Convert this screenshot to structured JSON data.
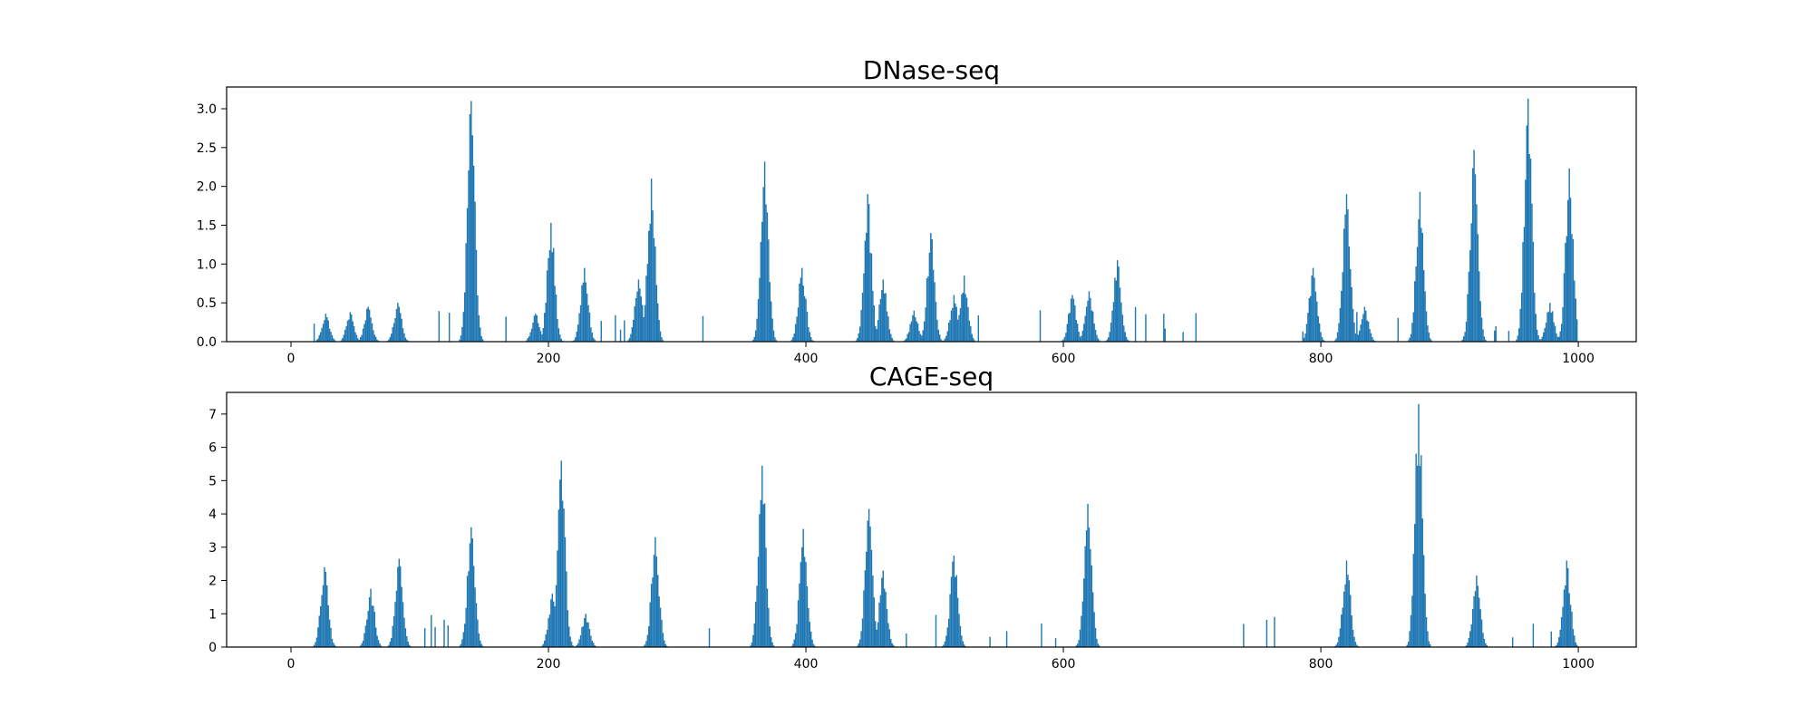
{
  "chart_data": [
    {
      "type": "bar",
      "title": "DNase-seq",
      "xlabel": "",
      "ylabel": "",
      "xlim": [
        -50,
        1045
      ],
      "ylim": [
        0,
        3.28
      ],
      "xticks": [
        0,
        200,
        400,
        600,
        800,
        1000
      ],
      "xtick_labels": [
        "0",
        "200",
        "400",
        "600",
        "800",
        "1000"
      ],
      "yticks": [
        0,
        0.5,
        1.0,
        1.5,
        2.0,
        2.5,
        3.0
      ],
      "ytick_labels": [
        "0.0",
        "0.5",
        "1.0",
        "1.5",
        "2.0",
        "2.5",
        "3.0"
      ],
      "grid": false,
      "color": "#1f77b4",
      "peaks": [
        {
          "x": 27,
          "height": 0.36,
          "width": 3
        },
        {
          "x": 46,
          "height": 0.38,
          "width": 3
        },
        {
          "x": 60,
          "height": 0.45,
          "width": 3
        },
        {
          "x": 83,
          "height": 0.5,
          "width": 3
        },
        {
          "x": 140,
          "height": 3.1,
          "width": 3
        },
        {
          "x": 190,
          "height": 0.36,
          "width": 3
        },
        {
          "x": 202,
          "height": 1.53,
          "width": 3
        },
        {
          "x": 228,
          "height": 0.95,
          "width": 3
        },
        {
          "x": 270,
          "height": 0.8,
          "width": 3
        },
        {
          "x": 280,
          "height": 2.1,
          "width": 3
        },
        {
          "x": 368,
          "height": 2.32,
          "width": 3
        },
        {
          "x": 397,
          "height": 0.95,
          "width": 3
        },
        {
          "x": 448,
          "height": 1.9,
          "width": 3
        },
        {
          "x": 460,
          "height": 0.8,
          "width": 3
        },
        {
          "x": 484,
          "height": 0.4,
          "width": 3
        },
        {
          "x": 497,
          "height": 1.4,
          "width": 3
        },
        {
          "x": 515,
          "height": 0.6,
          "width": 3
        },
        {
          "x": 523,
          "height": 0.85,
          "width": 3
        },
        {
          "x": 607,
          "height": 0.6,
          "width": 3
        },
        {
          "x": 620,
          "height": 0.65,
          "width": 3
        },
        {
          "x": 642,
          "height": 1.05,
          "width": 3
        },
        {
          "x": 794,
          "height": 0.95,
          "width": 3
        },
        {
          "x": 820,
          "height": 1.9,
          "width": 3
        },
        {
          "x": 834,
          "height": 0.45,
          "width": 3
        },
        {
          "x": 877,
          "height": 1.93,
          "width": 3
        },
        {
          "x": 919,
          "height": 2.47,
          "width": 3
        },
        {
          "x": 961,
          "height": 3.13,
          "width": 3
        },
        {
          "x": 978,
          "height": 0.5,
          "width": 3
        },
        {
          "x": 993,
          "height": 2.23,
          "width": 3
        }
      ]
    },
    {
      "type": "bar",
      "title": "CAGE-seq",
      "xlabel": "",
      "ylabel": "",
      "xlim": [
        -50,
        1045
      ],
      "ylim": [
        0,
        7.65
      ],
      "xticks": [
        0,
        200,
        400,
        600,
        800,
        1000
      ],
      "xtick_labels": [
        "0",
        "200",
        "400",
        "600",
        "800",
        "1000"
      ],
      "yticks": [
        0,
        1,
        2,
        3,
        4,
        5,
        6,
        7
      ],
      "ytick_labels": [
        "0",
        "1",
        "2",
        "3",
        "4",
        "5",
        "6",
        "7"
      ],
      "grid": false,
      "color": "#1f77b4",
      "peaks": [
        {
          "x": 26,
          "height": 2.4,
          "width": 3
        },
        {
          "x": 62,
          "height": 1.75,
          "width": 3
        },
        {
          "x": 84,
          "height": 2.65,
          "width": 3
        },
        {
          "x": 140,
          "height": 3.6,
          "width": 3
        },
        {
          "x": 203,
          "height": 1.6,
          "width": 3
        },
        {
          "x": 210,
          "height": 5.6,
          "width": 3
        },
        {
          "x": 229,
          "height": 1.0,
          "width": 3
        },
        {
          "x": 283,
          "height": 3.3,
          "width": 3
        },
        {
          "x": 366,
          "height": 5.45,
          "width": 3
        },
        {
          "x": 398,
          "height": 3.55,
          "width": 3
        },
        {
          "x": 449,
          "height": 4.15,
          "width": 3
        },
        {
          "x": 460,
          "height": 2.3,
          "width": 3
        },
        {
          "x": 515,
          "height": 2.75,
          "width": 3
        },
        {
          "x": 619,
          "height": 4.3,
          "width": 3
        },
        {
          "x": 820,
          "height": 2.6,
          "width": 3
        },
        {
          "x": 876,
          "height": 7.3,
          "width": 3
        },
        {
          "x": 921,
          "height": 2.15,
          "width": 3
        },
        {
          "x": 991,
          "height": 2.6,
          "width": 3
        }
      ]
    }
  ]
}
